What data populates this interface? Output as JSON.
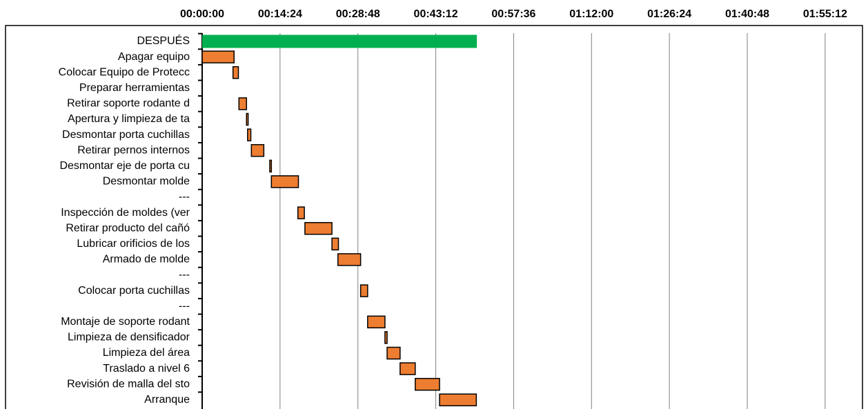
{
  "chart_data": {
    "type": "gantt",
    "categories": [
      "DESPUÉS",
      "Apagar equipo",
      "Colocar Equipo de Protecc",
      "Preparar herramientas",
      "Retirar soporte rodante d",
      "Apertura y limpieza de ta",
      "Desmontar porta cuchillas",
      "Retirar pernos internos",
      "Desmontar eje de porta cu",
      "Desmontar molde",
      "---",
      "Inspección de moldes (ver",
      "Retirar producto del cañó",
      "Lubricar orificios de los",
      "Armado de molde",
      "---",
      "Colocar porta cuchillas",
      "---",
      "Montaje de soporte rodant",
      "Limpieza de densificador",
      "Limpieza del área",
      "Traslado a nivel 6",
      "Revisión de malla del sto",
      "Arranque"
    ],
    "starts": [
      0,
      0,
      5.7,
      null,
      6.8,
      8.2,
      8.4,
      9.1,
      12.5,
      12.8,
      null,
      17.7,
      19.0,
      24.0,
      25.1,
      null,
      29.3,
      null,
      30.6,
      33.8,
      34.2,
      36.6,
      39.4,
      43.9
    ],
    "durations": [
      50.8,
      5.9,
      1.0,
      null,
      1.4,
      0.3,
      0.6,
      2.3,
      0.3,
      5.0,
      null,
      1.2,
      5.0,
      1.2,
      4.2,
      null,
      1.3,
      null,
      3.2,
      0.4,
      2.4,
      2.8,
      4.5,
      6.8
    ],
    "colors": [
      "#00b050",
      "#ed7d31",
      "#ed7d31",
      null,
      "#ed7d31",
      "#ed7d31",
      "#ed7d31",
      "#ed7d31",
      "#ed7d31",
      "#ed7d31",
      null,
      "#ed7d31",
      "#ed7d31",
      "#ed7d31",
      "#ed7d31",
      null,
      "#ed7d31",
      null,
      "#ed7d31",
      "#ed7d31",
      "#ed7d31",
      "#ed7d31",
      "#ed7d31",
      "#ed7d31"
    ],
    "xlim": [
      0,
      119.3
    ],
    "xticks": [
      {
        "value": 0,
        "label": "00:00:00"
      },
      {
        "value": 14.4,
        "label": "00:14:24"
      },
      {
        "value": 28.8,
        "label": "00:28:48"
      },
      {
        "value": 43.2,
        "label": "00:43:12"
      },
      {
        "value": 57.6,
        "label": "00:57:36"
      },
      {
        "value": 72,
        "label": "01:12:00"
      },
      {
        "value": 86.4,
        "label": "01:26:24"
      },
      {
        "value": 100.8,
        "label": "01:40:48"
      },
      {
        "value": 115.2,
        "label": "01:55:12"
      }
    ],
    "grid": true
  }
}
